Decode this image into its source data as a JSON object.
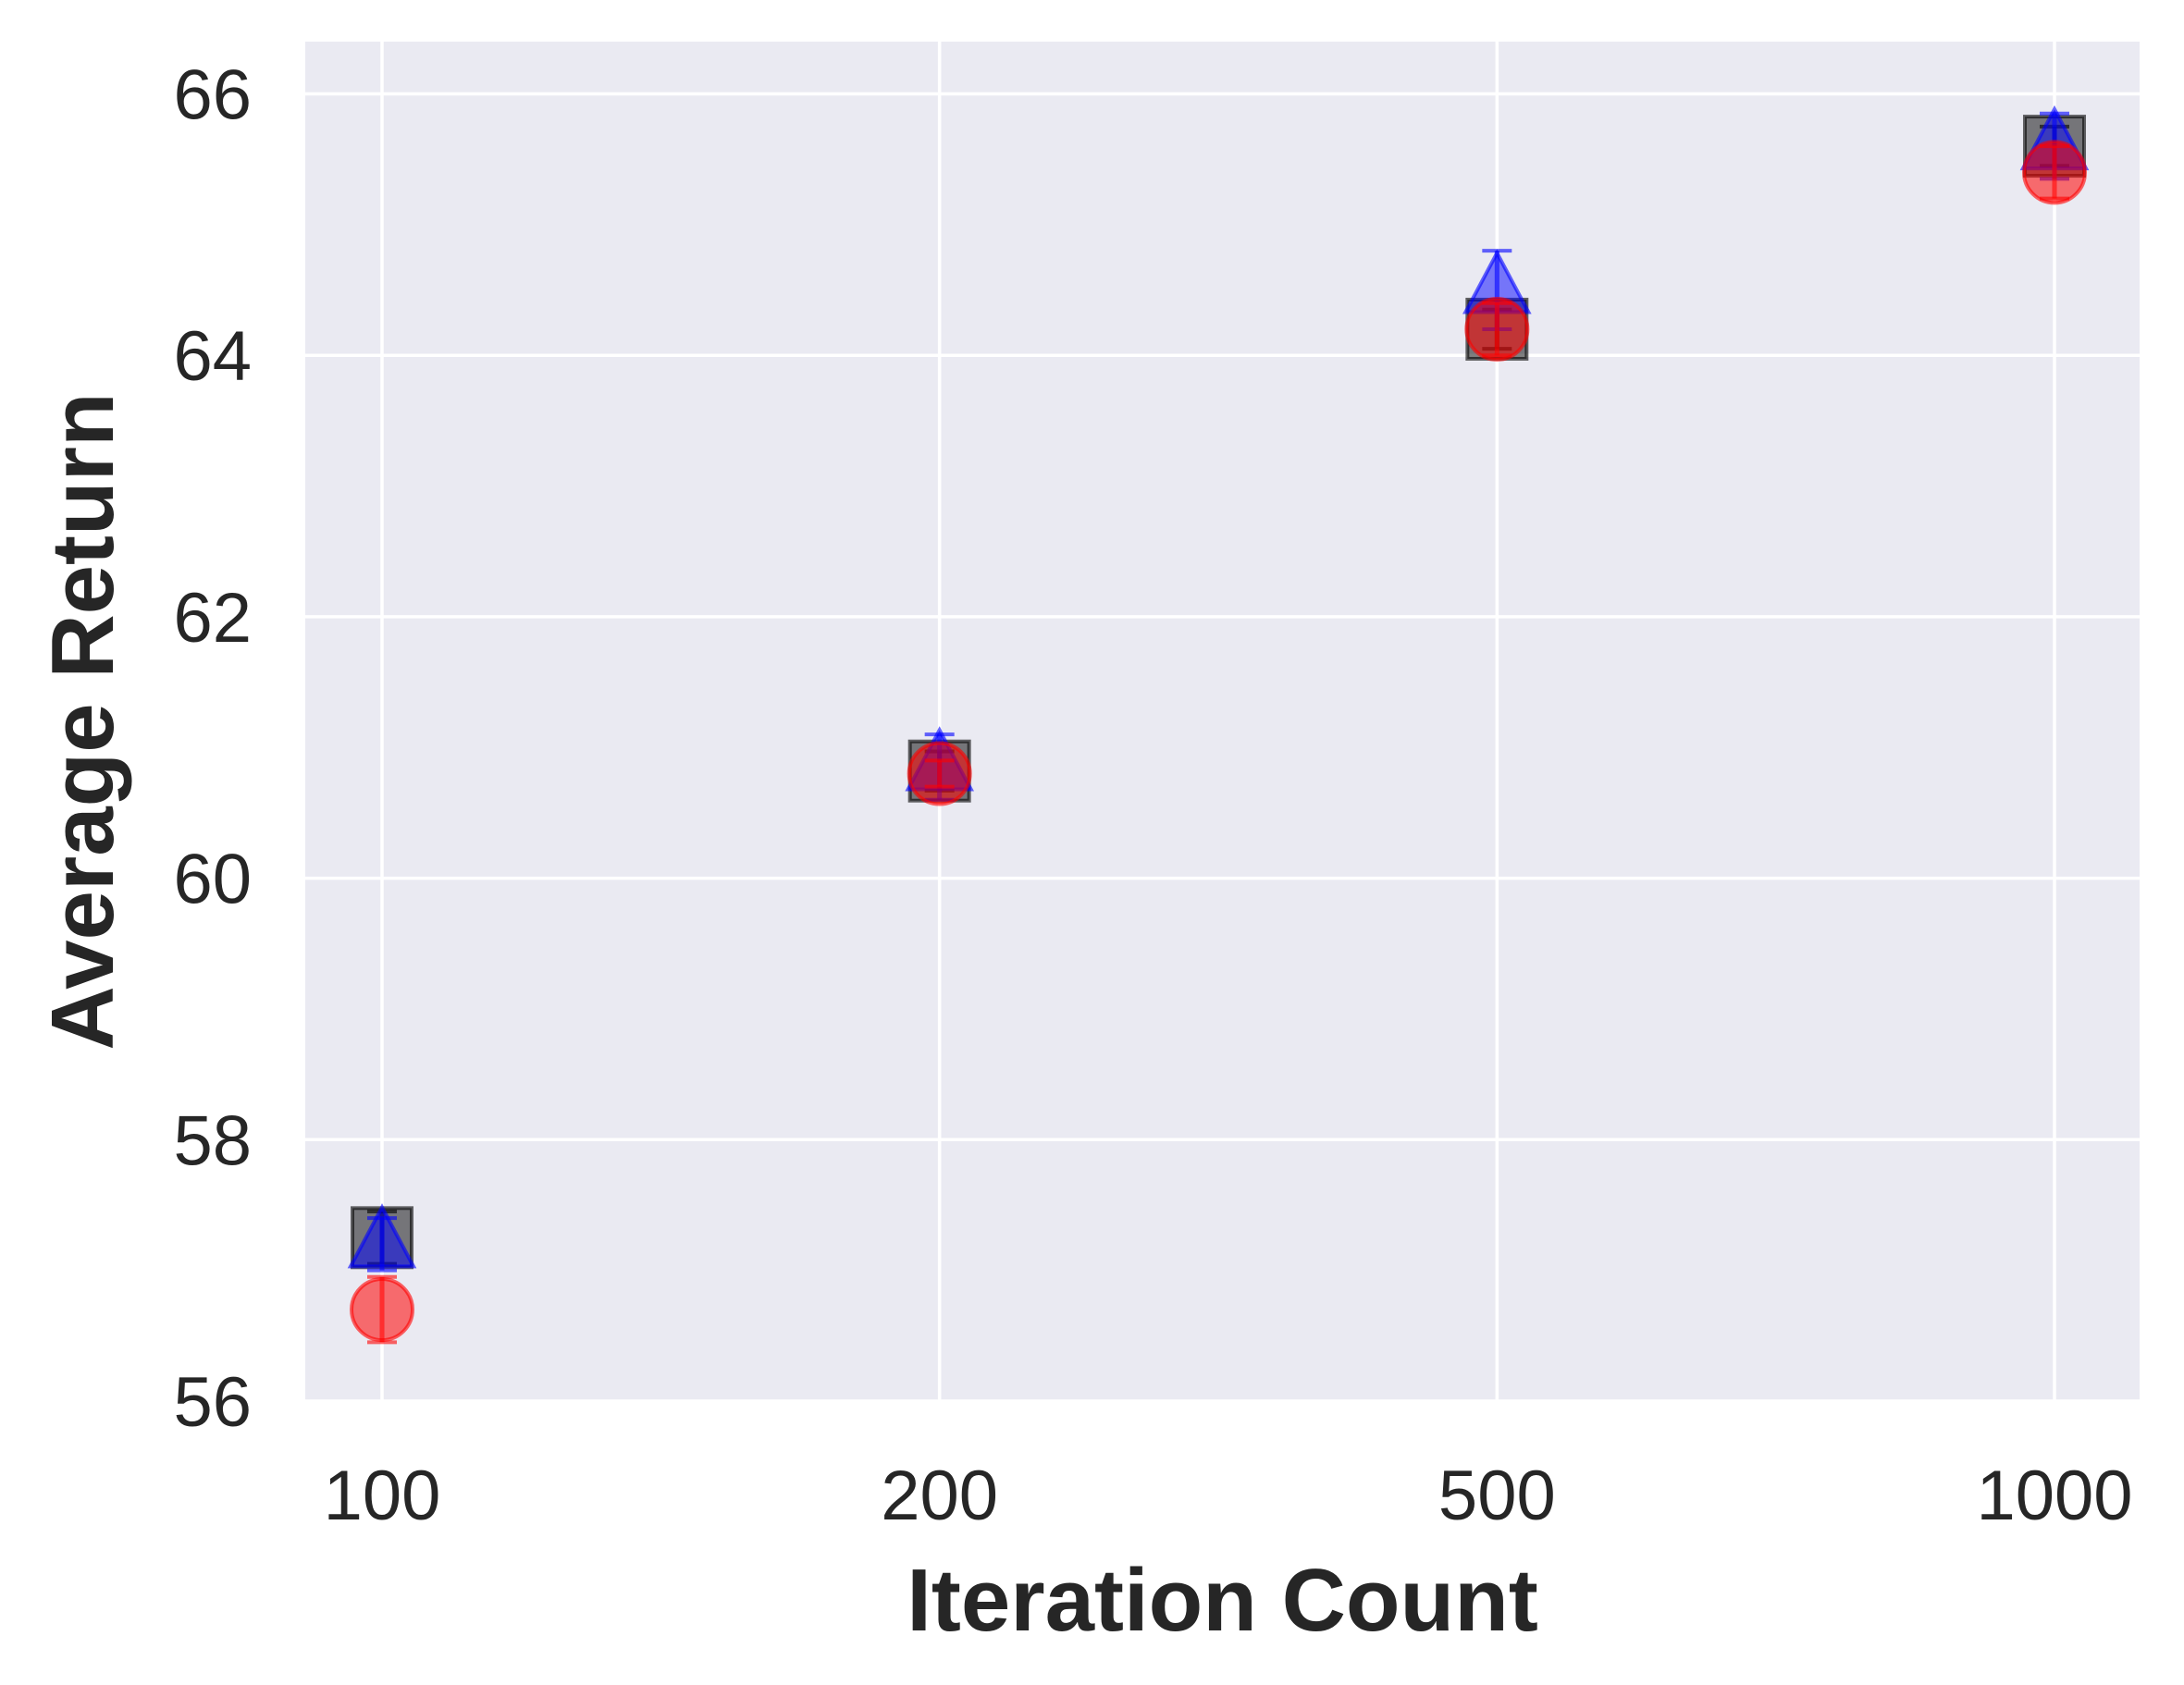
{
  "chart_data": {
    "type": "scatter",
    "title": "",
    "xlabel": "Iteration Count",
    "ylabel": "Average Return",
    "x_categories": [
      "100",
      "200",
      "500",
      "1000"
    ],
    "x_scale": "categorical",
    "ylim": [
      56,
      66.4
    ],
    "yticks": [
      56,
      58,
      60,
      62,
      64,
      66
    ],
    "grid": true,
    "background": "#eaeaf2",
    "legend": "none",
    "series": [
      {
        "marker": "square",
        "color": "#000000",
        "values": [
          57.25,
          60.82,
          64.2,
          65.6
        ],
        "errors": [
          0.2,
          0.15,
          0.15,
          0.15
        ]
      },
      {
        "marker": "triangle",
        "color": "#0000ff",
        "values": [
          57.2,
          60.85,
          64.5,
          65.6
        ],
        "errors": [
          0.2,
          0.25,
          0.3,
          0.25
        ]
      },
      {
        "marker": "circle",
        "color": "#ff0000",
        "values": [
          56.7,
          60.8,
          64.2,
          65.4
        ],
        "errors": [
          0.25,
          0.1,
          0.2,
          0.2
        ]
      }
    ]
  }
}
